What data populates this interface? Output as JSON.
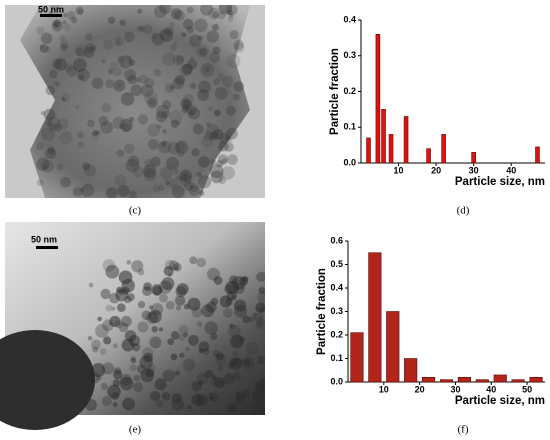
{
  "images": [
    {
      "scale_bar": "50 nm",
      "panel_label": "(c)"
    },
    {
      "scale_bar": "50 nm",
      "panel_label": "(e)"
    }
  ],
  "chart_data": [
    {
      "type": "bar",
      "panel_label": "(d)",
      "xlabel": "Particle size, nm",
      "ylabel": "Particle fraction",
      "x": [
        2,
        4.5,
        6,
        8,
        12,
        18,
        22,
        30,
        47
      ],
      "values": [
        0.07,
        0.36,
        0.15,
        0.08,
        0.13,
        0.04,
        0.08,
        0.03,
        0.045
      ],
      "color": "#e31010",
      "xlim": [
        0,
        49
      ],
      "xticks": [
        10,
        20,
        30,
        40
      ],
      "ylim": [
        0,
        0.4
      ],
      "yticks": [
        {
          "value": 0,
          "label": "0.0"
        },
        0.1,
        0.2,
        0.3,
        0.4
      ]
    },
    {
      "type": "bar",
      "panel_label": "(f)",
      "xlabel": "Particle size, nm",
      "ylabel": "Particle fraction",
      "x": [
        2.5,
        7.5,
        12.5,
        17.5,
        22.5,
        27.5,
        32.5,
        37.5,
        42.5,
        47.5,
        52.5
      ],
      "values": [
        0.21,
        0.55,
        0.3,
        0.1,
        0.02,
        0.01,
        0.02,
        0.01,
        0.03,
        0.01,
        0.02
      ],
      "color": "#b3241a",
      "xlim": [
        0,
        55
      ],
      "xticks": [
        10,
        20,
        30,
        40,
        50
      ],
      "ylim": [
        0,
        0.6
      ],
      "yticks": [
        {
          "value": 0,
          "label": "0.0"
        },
        0.1,
        0.2,
        0.3,
        0.4,
        0.5,
        0.6
      ]
    }
  ]
}
